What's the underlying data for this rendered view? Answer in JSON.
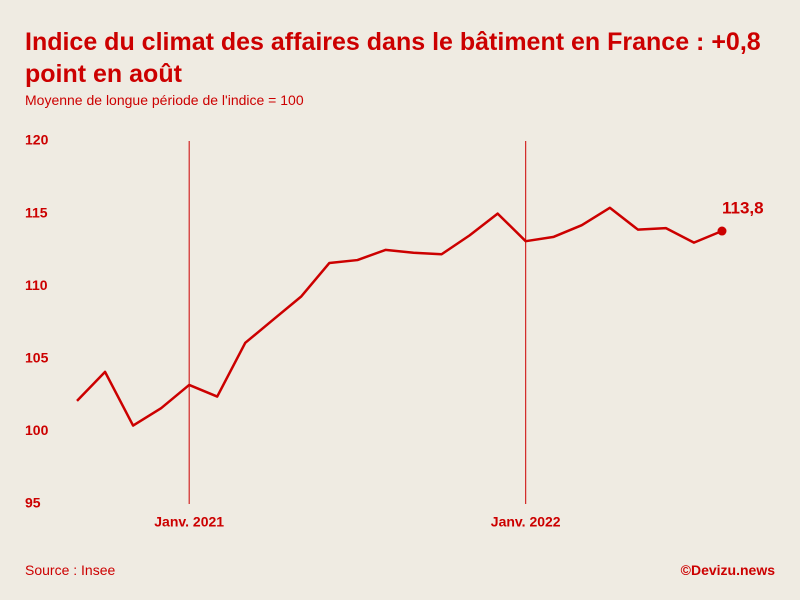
{
  "chart_data": {
    "type": "line",
    "title": "Indice du climat des affaires dans le bâtiment en France : +0,8 point en août",
    "subtitle": "Moyenne de longue période de l'indice = 100",
    "source": "Source : Insee",
    "credit": "©Devizu.news",
    "categories": [
      null,
      null,
      null,
      null,
      "Janv. 2021",
      null,
      null,
      null,
      null,
      null,
      null,
      null,
      null,
      null,
      null,
      null,
      "Janv. 2022",
      null,
      null,
      null,
      null,
      null,
      null,
      null
    ],
    "values": [
      102.1,
      104.1,
      100.4,
      101.6,
      103.2,
      102.4,
      106.1,
      107.7,
      109.3,
      111.6,
      111.8,
      112.5,
      112.3,
      112.2,
      113.5,
      115.0,
      113.1,
      113.4,
      114.2,
      115.4,
      113.9,
      114.0,
      113.0,
      113.8
    ],
    "value_labels": [
      null,
      null,
      null,
      null,
      null,
      null,
      null,
      null,
      null,
      null,
      null,
      null,
      null,
      null,
      null,
      null,
      null,
      null,
      null,
      null,
      null,
      null,
      null,
      "113,8"
    ],
    "color": "#cc0000",
    "ylim": [
      95,
      120
    ],
    "yticks": [
      95,
      100,
      105,
      110,
      115,
      120
    ]
  }
}
